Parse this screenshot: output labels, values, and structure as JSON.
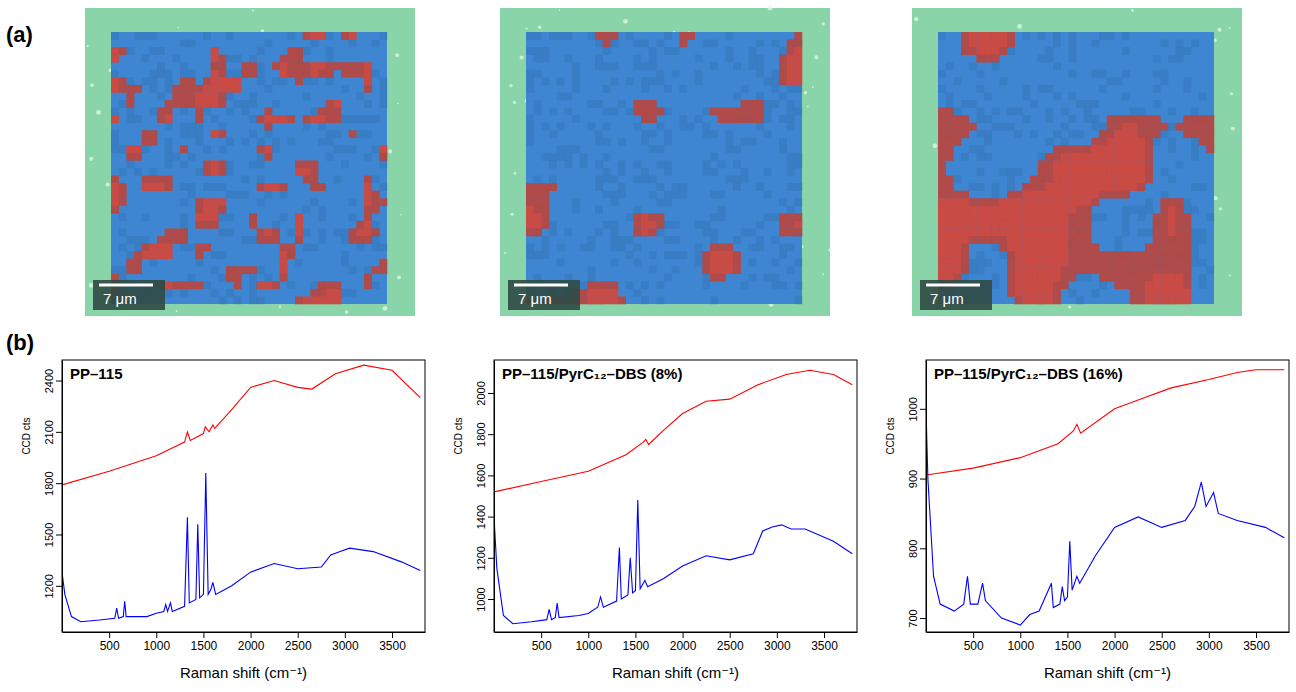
{
  "figure": {
    "panel_labels": [
      "(a)",
      "(b)"
    ],
    "maps": [
      {
        "scale_bar": "7 μm"
      },
      {
        "scale_bar": "7 μm"
      },
      {
        "scale_bar": "7 μm"
      }
    ]
  },
  "chart_data": [
    {
      "type": "line",
      "title": "PP–115",
      "x_label": "Raman shift (cm⁻¹)",
      "y_label": "CCD cts",
      "xlim": [
        0,
        3850
      ],
      "xticks": [
        500,
        1000,
        1500,
        2000,
        2500,
        3000,
        3500
      ],
      "ylim": [
        930,
        2520
      ],
      "yticks": [
        1200,
        1500,
        1800,
        2100,
        2400
      ],
      "series": [
        {
          "color": "#ff0000",
          "x": [
            0,
            500,
            1000,
            1300,
            1330,
            1360,
            1500,
            1520,
            1560,
            1600,
            1620,
            1800,
            2000,
            2250,
            2500,
            2650,
            2900,
            3200,
            3500,
            3800
          ],
          "values": [
            1790,
            1870,
            1960,
            2040,
            2100,
            2050,
            2090,
            2130,
            2100,
            2140,
            2120,
            2230,
            2360,
            2400,
            2360,
            2350,
            2440,
            2490,
            2460,
            2300
          ]
        },
        {
          "color": "#0000ff",
          "x": [
            0,
            30,
            100,
            200,
            400,
            560,
            580,
            600,
            650,
            665,
            680,
            900,
            1000,
            1080,
            1100,
            1120,
            1150,
            1170,
            1300,
            1330,
            1350,
            1420,
            1440,
            1460,
            1500,
            1525,
            1550,
            1580,
            1600,
            1630,
            1800,
            2000,
            2250,
            2500,
            2750,
            2850,
            2950,
            3050,
            3300,
            3600,
            3800
          ],
          "values": [
            1280,
            1150,
            1020,
            990,
            1000,
            1010,
            1070,
            1010,
            1020,
            1110,
            1020,
            1020,
            1040,
            1050,
            1090,
            1050,
            1100,
            1050,
            1080,
            1600,
            1100,
            1120,
            1560,
            1130,
            1150,
            1860,
            1150,
            1180,
            1220,
            1150,
            1200,
            1280,
            1330,
            1300,
            1310,
            1380,
            1400,
            1420,
            1400,
            1340,
            1290
          ]
        }
      ]
    },
    {
      "type": "line",
      "title": "PP–115/PyrC₁₂–DBS (8%)",
      "x_label": "Raman shift (cm⁻¹)",
      "y_label": "CCD cts",
      "xlim": [
        0,
        3850
      ],
      "xticks": [
        500,
        1000,
        1500,
        2000,
        2500,
        3000,
        3500
      ],
      "ylim": [
        840,
        2160
      ],
      "yticks": [
        1000,
        1200,
        1400,
        1600,
        1800,
        2000
      ],
      "series": [
        {
          "color": "#ff0000",
          "x": [
            0,
            500,
            1000,
            1400,
            1580,
            1610,
            1640,
            1800,
            2000,
            2250,
            2500,
            2800,
            3100,
            3350,
            3600,
            3800
          ],
          "values": [
            1520,
            1570,
            1620,
            1700,
            1760,
            1775,
            1750,
            1820,
            1900,
            1960,
            1970,
            2040,
            2090,
            2110,
            2090,
            2040
          ]
        },
        {
          "color": "#0000ff",
          "x": [
            0,
            30,
            100,
            200,
            400,
            560,
            585,
            610,
            650,
            670,
            690,
            900,
            1000,
            1100,
            1130,
            1160,
            1300,
            1330,
            1350,
            1420,
            1445,
            1470,
            1500,
            1525,
            1550,
            1600,
            1630,
            1800,
            2000,
            2250,
            2500,
            2750,
            2850,
            2950,
            3050,
            3150,
            3300,
            3600,
            3800
          ],
          "values": [
            1400,
            1150,
            920,
            880,
            890,
            900,
            950,
            900,
            910,
            980,
            910,
            920,
            930,
            960,
            1010,
            960,
            990,
            1250,
            1000,
            1020,
            1200,
            1030,
            1040,
            1480,
            1050,
            1090,
            1060,
            1100,
            1160,
            1210,
            1190,
            1220,
            1330,
            1350,
            1360,
            1340,
            1340,
            1280,
            1220
          ]
        }
      ]
    },
    {
      "type": "line",
      "title": "PP–115/PyrC₁₂–DBS (16%)",
      "x_label": "Raman shift (cm⁻¹)",
      "y_label": "CCD cts",
      "xlim": [
        0,
        3850
      ],
      "xticks": [
        500,
        1000,
        1500,
        2000,
        2500,
        3000,
        3500
      ],
      "ylim": [
        680,
        1070
      ],
      "yticks": [
        700,
        800,
        900,
        1000
      ],
      "series": [
        {
          "color": "#ff0000",
          "x": [
            0,
            500,
            1000,
            1400,
            1560,
            1600,
            1640,
            2000,
            2300,
            2600,
            3000,
            3300,
            3500,
            3800
          ],
          "values": [
            905,
            915,
            930,
            950,
            968,
            978,
            965,
            1000,
            1015,
            1030,
            1042,
            1052,
            1056,
            1056
          ]
        },
        {
          "color": "#0000ff",
          "x": [
            0,
            20,
            80,
            150,
            300,
            400,
            440,
            470,
            550,
            600,
            630,
            800,
            1000,
            1100,
            1200,
            1330,
            1350,
            1420,
            1445,
            1470,
            1500,
            1525,
            1550,
            1600,
            1630,
            1800,
            2000,
            2250,
            2500,
            2750,
            2850,
            2920,
            2970,
            3050,
            3100,
            3300,
            3600,
            3800
          ],
          "values": [
            1000,
            900,
            760,
            720,
            710,
            720,
            760,
            720,
            720,
            750,
            725,
            700,
            690,
            705,
            710,
            750,
            715,
            720,
            745,
            725,
            730,
            810,
            740,
            760,
            750,
            790,
            830,
            845,
            830,
            840,
            860,
            895,
            860,
            880,
            850,
            840,
            830,
            815
          ]
        }
      ]
    }
  ]
}
